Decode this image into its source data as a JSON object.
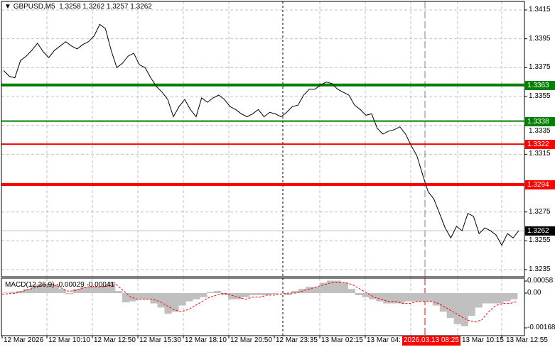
{
  "header": {
    "symbol": "GBPUSD,M5",
    "ohlc": "1.3258 1.3262 1.3257 1.3262"
  },
  "price_axis": {
    "min": 1.3235,
    "max": 1.3415,
    "ticks": [
      "1.3415",
      "1.3395",
      "1.3375",
      "1.3355",
      "1.3335",
      "1.3315",
      "1.3275",
      "1.3255",
      "1.3235"
    ]
  },
  "levels": [
    {
      "value": "1.3363",
      "color": "#008000",
      "thick": true
    },
    {
      "value": "1.3338",
      "color": "#008000",
      "thick": false
    },
    {
      "value": "1.3322",
      "color": "#ff0000",
      "thick": false
    },
    {
      "value": "1.3294",
      "color": "#ff0000",
      "thick": true
    }
  ],
  "current_price": {
    "value": "1.3262",
    "color": "#000000"
  },
  "price_series": [
    1.3373,
    1.3369,
    1.3368,
    1.338,
    1.3383,
    1.3387,
    1.3392,
    1.3386,
    1.3382,
    1.3387,
    1.339,
    1.3393,
    1.339,
    1.3388,
    1.3391,
    1.3393,
    1.3397,
    1.3405,
    1.3402,
    1.3387,
    1.3375,
    1.3378,
    1.3383,
    1.3385,
    1.3377,
    1.3375,
    1.3368,
    1.3362,
    1.3358,
    1.3353,
    1.3341,
    1.3348,
    1.3353,
    1.3346,
    1.3341,
    1.3354,
    1.3351,
    1.3354,
    1.3356,
    1.3353,
    1.3348,
    1.3346,
    1.3343,
    1.3341,
    1.3343,
    1.3346,
    1.3341,
    1.3344,
    1.3343,
    1.3341,
    1.3344,
    1.3348,
    1.3349,
    1.3356,
    1.336,
    1.336,
    1.3363,
    1.3365,
    1.3364,
    1.336,
    1.3358,
    1.3356,
    1.3349,
    1.3346,
    1.3342,
    1.3343,
    1.3333,
    1.3329,
    1.3331,
    1.3332,
    1.3334,
    1.3329,
    1.3321,
    1.3314,
    1.3301,
    1.3289,
    1.3284,
    1.3274,
    1.3264,
    1.3257,
    1.3265,
    1.3262,
    1.3274,
    1.3272,
    1.326,
    1.3264,
    1.3262,
    1.3259,
    1.3252,
    1.326,
    1.3257,
    1.3262
  ],
  "macd": {
    "label": "MACD(12,26,9) -0.00029 -0.00041",
    "axis_ticks": [
      "0.00058",
      "0.00",
      "-0.00168"
    ],
    "histogram": [
      2e-05,
      5e-05,
      0.0001,
      0.0002,
      0.0004,
      0.00045,
      0.00045,
      0.0004,
      0.0002,
      -5e-05,
      0.0002,
      0.0003,
      0.0003,
      0.0003,
      0.00035,
      0.00055,
      0.0001,
      -0.00045,
      -0.0004,
      -0.0003,
      -0.0003,
      -0.0005,
      -0.0007,
      -0.001,
      -0.0009,
      -0.0006,
      -0.0004,
      -0.0003,
      -0.0002,
      5e-05,
      0.0001,
      -0.0001,
      -0.0003,
      -0.0003,
      -0.0002,
      -0.0001,
      -0.0001,
      -0.0001,
      -5e-05,
      0,
      -0.0001,
      0.0001,
      0.0002,
      0.0003,
      0.0003,
      0.0005,
      0.0006,
      0.0006,
      0.0005,
      0.0002,
      -0.0001,
      -0.0002,
      -0.0003,
      -0.0004,
      -0.0005,
      -0.0005,
      -0.0005,
      -0.0004,
      -0.0004,
      -0.0004,
      -0.0004,
      -0.0006,
      -0.0009,
      -0.0012,
      -0.0015,
      -0.0016,
      -0.0011,
      -0.0007,
      -0.0005,
      -0.0005,
      -0.0005,
      -0.0004,
      -0.0003
    ],
    "signal": [
      -5e-05,
      -3e-05,
      0,
      0.0001,
      0.0002,
      0.0003,
      0.0004,
      0.00042,
      0.0003,
      0.0001,
      0.0001,
      0.0002,
      0.0003,
      0.0003,
      0.0003,
      0.00035,
      0.0004,
      0.0001,
      -0.0002,
      -0.0003,
      -0.0003,
      -0.0003,
      -0.0004,
      -0.0006,
      -0.0008,
      -0.0009,
      -0.0008,
      -0.0006,
      -0.0004,
      -0.0002,
      -0.0001,
      0,
      -0.0001,
      -0.0002,
      -0.0003,
      -0.0002,
      -0.0002,
      -0.0001,
      -0.0001,
      -5e-05,
      0,
      0,
      0.0001,
      0.0002,
      0.0003,
      0.0004,
      0.0005,
      0.0005,
      0.0005,
      0.0004,
      0.0002,
      0,
      -0.0002,
      -0.0003,
      -0.0004,
      -0.0004,
      -0.0005,
      -0.0005,
      -0.0004,
      -0.0004,
      -0.0004,
      -0.0005,
      -0.0007,
      -0.0009,
      -0.0011,
      -0.0013,
      -0.0014,
      -0.0013,
      -0.0009,
      -0.0006,
      -0.0005,
      -0.0005,
      -0.0004
    ],
    "histogram_color": "#c0c0c0",
    "signal_color": "#ff0000"
  },
  "time_axis": {
    "labels": [
      "12 Mar 2026",
      "12 Mar 10:10",
      "12 Mar 12:50",
      "12 Mar 15:30",
      "12 Mar 18:10",
      "12 Mar 20:50",
      "12 Mar 23:35",
      "13 Mar 02:15",
      "13 Mar 04:",
      "13 Mar 10:15",
      "13 Mar 12:55"
    ],
    "cursor_label": "2026.03.13 08:25",
    "cursor_color": "#ff0000"
  }
}
